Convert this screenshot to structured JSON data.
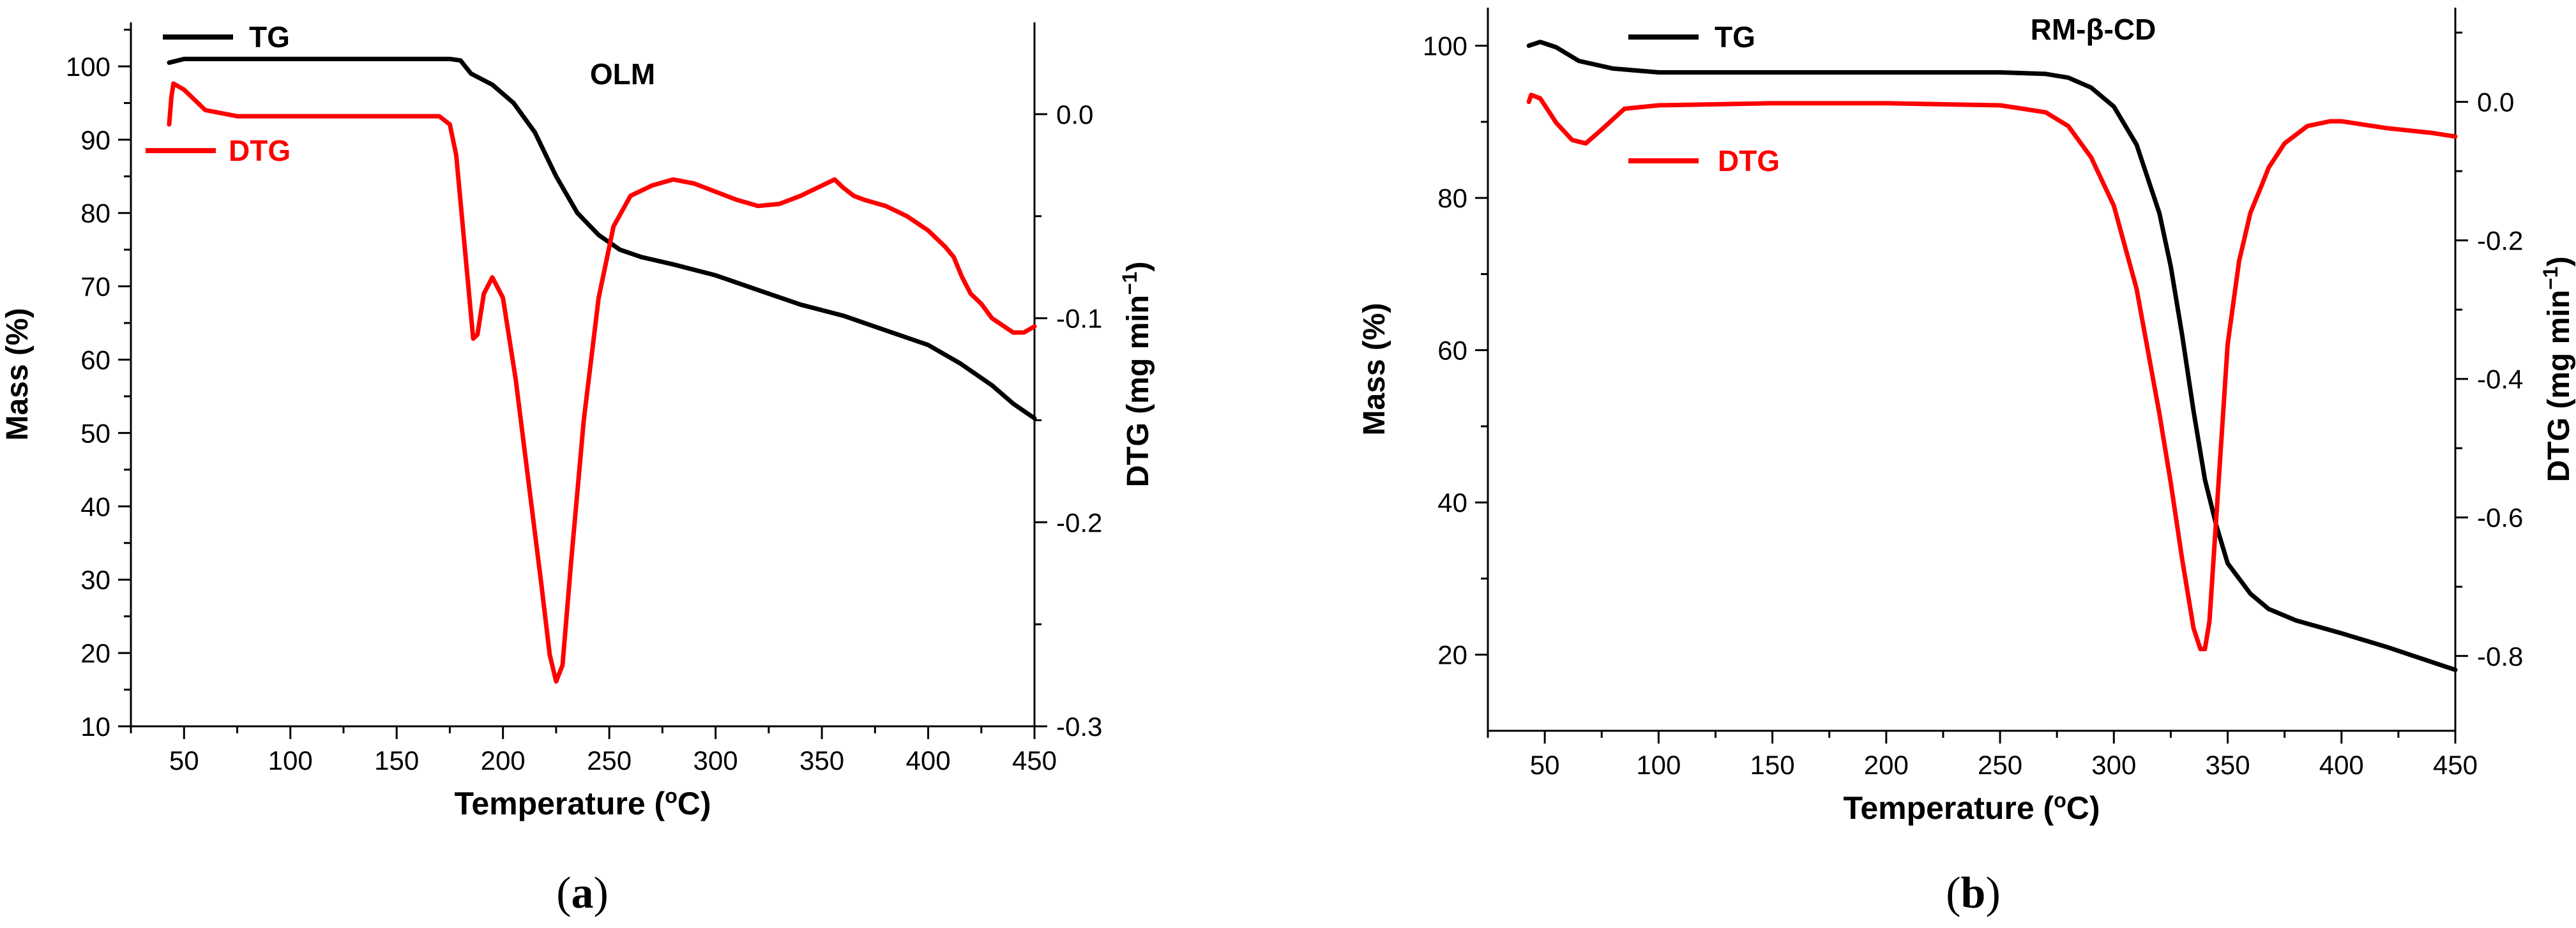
{
  "colors": {
    "tg": "#000000",
    "dtg": "#ff0000",
    "axis": "#000000",
    "background": "#ffffff"
  },
  "chart_data": [
    {
      "type": "line",
      "panel_label": "a",
      "title": "OLM",
      "xlabel": "Temperature (",
      "xlabel_unit": "o",
      "xlabel_end": "C)",
      "ylabel": "Mass (%)",
      "y2label": "DTG (mg min",
      "y2label_exp": "−1",
      "y2label_end": ")",
      "xlim": [
        25,
        450
      ],
      "ylim": [
        10,
        106
      ],
      "y2lim": [
        -0.3,
        0.045
      ],
      "xticks": [
        50,
        100,
        150,
        200,
        250,
        300,
        350,
        400,
        450
      ],
      "yticks": [
        10,
        20,
        30,
        40,
        50,
        60,
        70,
        80,
        90,
        100
      ],
      "y2ticks": [
        -0.3,
        -0.2,
        -0.1,
        0.0
      ],
      "y2tick_labels": [
        "-0.3",
        "-0.2",
        "-0.1",
        "0.0"
      ],
      "legend_placement": "top-left",
      "series": [
        {
          "name": "TG",
          "axis": "left",
          "x": [
            43,
            50,
            100,
            150,
            175,
            180,
            185,
            195,
            205,
            215,
            225,
            235,
            245,
            255,
            265,
            280,
            300,
            320,
            340,
            360,
            380,
            400,
            415,
            430,
            440,
            450
          ],
          "y": [
            100.5,
            101,
            101,
            101,
            101,
            100.8,
            99,
            97.5,
            95,
            91,
            85,
            80,
            77,
            75,
            74,
            73,
            71.5,
            69.5,
            67.5,
            66,
            64,
            62,
            59.5,
            56.5,
            54,
            52
          ]
        },
        {
          "name": "DTG",
          "axis": "right",
          "x": [
            43,
            44,
            45,
            50,
            60,
            75,
            100,
            125,
            150,
            170,
            175,
            178,
            182,
            186,
            188,
            191,
            195,
            200,
            206,
            212,
            218,
            222,
            225,
            228,
            232,
            238,
            245,
            252,
            260,
            270,
            280,
            290,
            300,
            310,
            320,
            330,
            340,
            350,
            356,
            360,
            365,
            370,
            380,
            390,
            400,
            408,
            412,
            416,
            420,
            425,
            430,
            440,
            445,
            450
          ],
          "y": [
            -0.005,
            0.008,
            0.015,
            0.012,
            0.002,
            -0.001,
            -0.001,
            -0.001,
            -0.001,
            -0.001,
            -0.005,
            -0.02,
            -0.065,
            -0.11,
            -0.108,
            -0.088,
            -0.08,
            -0.09,
            -0.13,
            -0.18,
            -0.23,
            -0.265,
            -0.278,
            -0.27,
            -0.22,
            -0.15,
            -0.09,
            -0.055,
            -0.04,
            -0.035,
            -0.032,
            -0.034,
            -0.038,
            -0.042,
            -0.045,
            -0.044,
            -0.04,
            -0.035,
            -0.032,
            -0.036,
            -0.04,
            -0.042,
            -0.045,
            -0.05,
            -0.057,
            -0.065,
            -0.07,
            -0.08,
            -0.088,
            -0.093,
            -0.1,
            -0.107,
            -0.107,
            -0.104
          ]
        }
      ]
    },
    {
      "type": "line",
      "panel_label": "b",
      "title": "RM-β-CD",
      "xlabel": "Temperature (",
      "xlabel_unit": "o",
      "xlabel_end": "C)",
      "ylabel": "Mass (%)",
      "y2label": "DTG (mg min",
      "y2label_exp": "−1",
      "y2label_end": ")",
      "xlim": [
        25,
        450
      ],
      "ylim": [
        10,
        105
      ],
      "y2lim": [
        -0.908,
        0.136
      ],
      "xticks": [
        50,
        100,
        150,
        200,
        250,
        300,
        350,
        400,
        450
      ],
      "yticks": [
        20,
        40,
        60,
        80,
        100
      ],
      "y2ticks": [
        -0.8,
        -0.6,
        -0.4,
        -0.2,
        0.0
      ],
      "y2tick_labels": [
        "-0.8",
        "-0.6",
        "-0.4",
        "-0.2",
        "0.0"
      ],
      "legend_placement": "top-left",
      "series": [
        {
          "name": "TG",
          "axis": "left",
          "x": [
            43,
            48,
            55,
            65,
            80,
            100,
            150,
            200,
            250,
            270,
            280,
            290,
            300,
            310,
            320,
            325,
            330,
            335,
            340,
            345,
            350,
            360,
            368,
            380,
            400,
            420,
            440,
            450
          ],
          "y": [
            100,
            100.5,
            99.8,
            98,
            97,
            96.5,
            96.5,
            96.5,
            96.5,
            96.3,
            95.8,
            94.5,
            92,
            87,
            78,
            71,
            62,
            52,
            43,
            37,
            32,
            28,
            26,
            24.5,
            22.8,
            21,
            19,
            18
          ]
        },
        {
          "name": "DTG",
          "axis": "right",
          "x": [
            43,
            44,
            48,
            55,
            62,
            68,
            75,
            85,
            100,
            150,
            200,
            250,
            270,
            280,
            290,
            300,
            310,
            320,
            325,
            330,
            335,
            338,
            340,
            342,
            345,
            350,
            355,
            360,
            365,
            368,
            375,
            385,
            395,
            400,
            410,
            420,
            440,
            450
          ],
          "y": [
            0.0,
            0.01,
            0.005,
            -0.03,
            -0.055,
            -0.06,
            -0.04,
            -0.01,
            -0.005,
            -0.002,
            -0.002,
            -0.005,
            -0.015,
            -0.035,
            -0.08,
            -0.15,
            -0.27,
            -0.45,
            -0.55,
            -0.66,
            -0.76,
            -0.79,
            -0.79,
            -0.75,
            -0.6,
            -0.35,
            -0.23,
            -0.16,
            -0.12,
            -0.095,
            -0.06,
            -0.035,
            -0.028,
            -0.028,
            -0.033,
            -0.038,
            -0.045,
            -0.05
          ]
        }
      ]
    }
  ]
}
